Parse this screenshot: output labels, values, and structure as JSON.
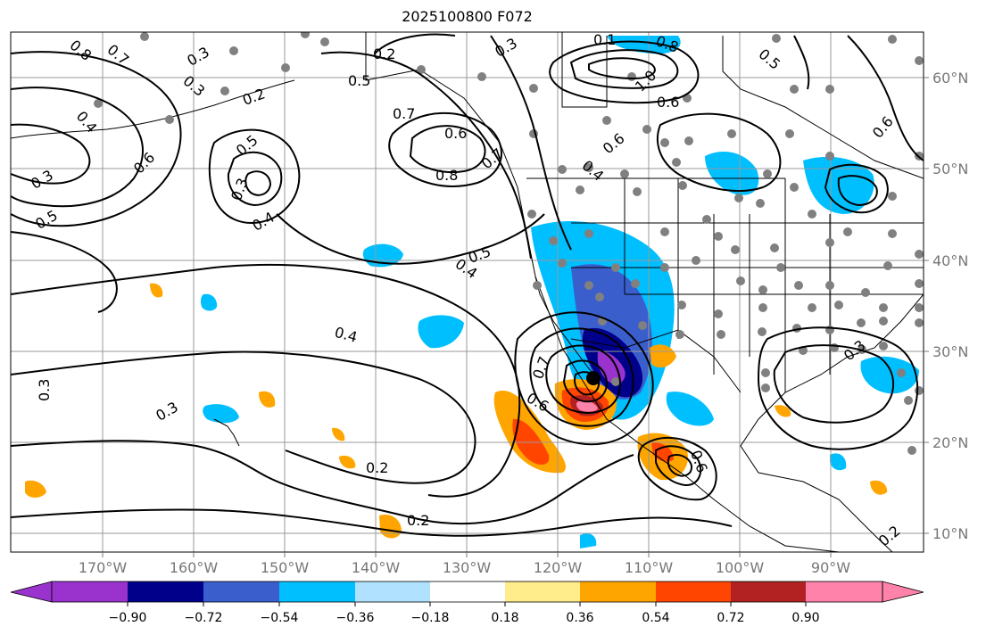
{
  "title": "2025100800 F072",
  "map": {
    "lon_ticks": [
      "170°W",
      "160°W",
      "150°W",
      "140°W",
      "130°W",
      "120°W",
      "110°W",
      "100°W",
      "90°W"
    ],
    "lat_ticks": [
      "60°N",
      "50°N",
      "40°N",
      "30°N",
      "20°N",
      "10°N"
    ],
    "contour_labels": [
      "0.8",
      "0.7",
      "0.3",
      "0.2",
      "0.5",
      "0.3",
      "0.6",
      "0.4",
      "0.3",
      "0.5",
      "0.5",
      "0.3",
      "0.4",
      "0.7",
      "0.6",
      "0.8",
      "0.7",
      "0.2",
      "0.3",
      "0.1",
      "0.8",
      "1.0",
      "0.6",
      "0.6",
      "0.4",
      "0.5",
      "0.6",
      "0.5",
      "0.4",
      "0.4",
      "0.3",
      "0.3",
      "0.2",
      "0.2",
      "0.6",
      "0.7",
      "0.6",
      "0.3",
      "0.2"
    ],
    "storm_center": {
      "lon": -115.3,
      "lat": 26.8
    }
  },
  "colorbar": {
    "tick_labels": [
      "−0.90",
      "−0.72",
      "−0.54",
      "−0.36",
      "−0.18",
      "0.18",
      "0.36",
      "0.54",
      "0.72",
      "0.90"
    ],
    "colors": [
      "#9a32cd",
      "#00008b",
      "#3a5fcd",
      "#00bfff",
      "#b0e2ff",
      "#ffffff",
      "#ffec8b",
      "#ffa500",
      "#ff4500",
      "#b22222",
      "#ff82ab"
    ]
  },
  "colors": {
    "station_dots": "#808080",
    "grid": "#999999",
    "contours": "#000000"
  }
}
